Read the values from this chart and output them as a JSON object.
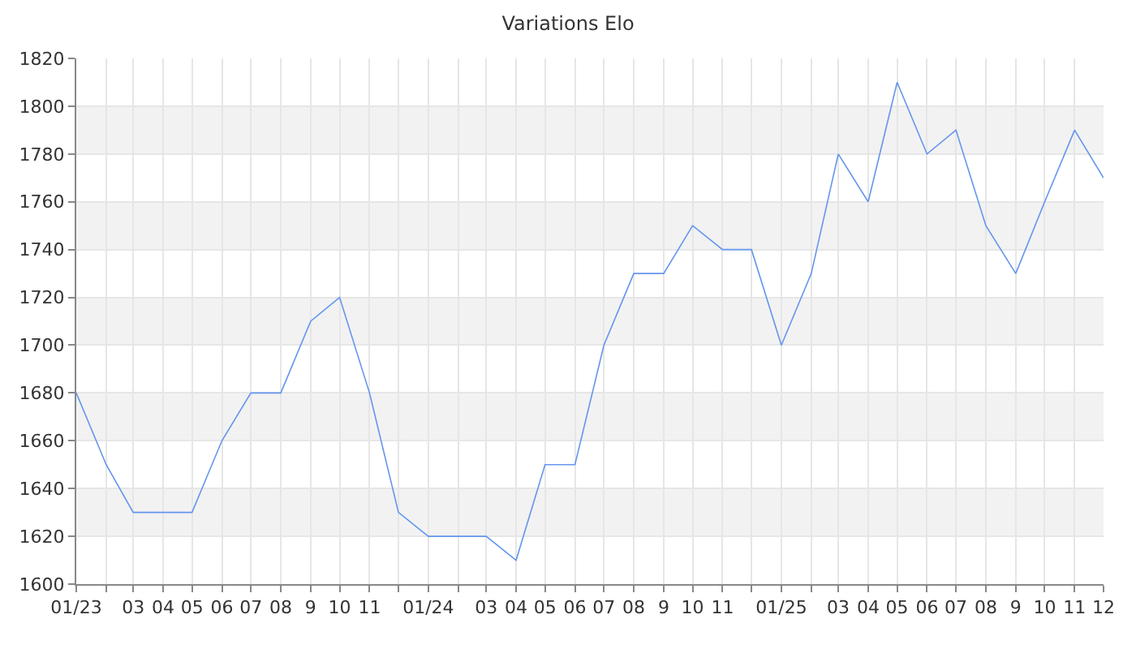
{
  "chart_data": {
    "type": "line",
    "title": "Variations Elo",
    "x": [
      "2023-01",
      "2023-02",
      "2023-03",
      "2023-04",
      "2023-05",
      "2023-06",
      "2023-07",
      "2023-08",
      "2023-09",
      "2023-10",
      "2023-11",
      "2023-12",
      "2024-01",
      "2024-02",
      "2024-03",
      "2024-04",
      "2024-05",
      "2024-06",
      "2024-07",
      "2024-08",
      "2024-09",
      "2024-10",
      "2024-11",
      "2024-12",
      "2025-01",
      "2025-02",
      "2025-03",
      "2025-04",
      "2025-05",
      "2025-06",
      "2025-07",
      "2025-08",
      "2025-09",
      "2025-10",
      "2025-11",
      "2025-12"
    ],
    "series": [
      {
        "color": "#6495ed",
        "values": [
          1680,
          1650,
          1630,
          1630,
          1630,
          1660,
          1680,
          1680,
          1710,
          1720,
          1680,
          1630,
          1620,
          1620,
          1620,
          1610,
          1650,
          1650,
          1700,
          1730,
          1730,
          1750,
          1740,
          1740,
          1700,
          1730,
          1780,
          1760,
          1810,
          1780,
          1790,
          1750,
          1730,
          1760,
          1790,
          1770
        ]
      }
    ],
    "xlim": [
      "2023-01",
      "2025-12"
    ],
    "xticks": [
      {
        "value": "2023-01",
        "label": "01/23"
      },
      {
        "value": "2023-02",
        "label": null
      },
      {
        "value": "2023-03",
        "label": "03"
      },
      {
        "value": "2023-04",
        "label": "04"
      },
      {
        "value": "2023-05",
        "label": "05"
      },
      {
        "value": "2023-06",
        "label": "06"
      },
      {
        "value": "2023-07",
        "label": "07"
      },
      {
        "value": "2023-08",
        "label": "08"
      },
      {
        "value": "2023-09",
        "label": "9"
      },
      {
        "value": "2023-10",
        "label": "10"
      },
      {
        "value": "2023-11",
        "label": "11"
      },
      {
        "value": "2023-12",
        "label": null
      },
      {
        "value": "2024-01",
        "label": "01/24"
      },
      {
        "value": "2024-02",
        "label": null
      },
      {
        "value": "2024-03",
        "label": "03"
      },
      {
        "value": "2024-04",
        "label": "04"
      },
      {
        "value": "2024-05",
        "label": "05"
      },
      {
        "value": "2024-06",
        "label": "06"
      },
      {
        "value": "2024-07",
        "label": "07"
      },
      {
        "value": "2024-08",
        "label": "08"
      },
      {
        "value": "2024-09",
        "label": "9"
      },
      {
        "value": "2024-10",
        "label": "10"
      },
      {
        "value": "2024-11",
        "label": "11"
      },
      {
        "value": "2024-12",
        "label": null
      },
      {
        "value": "2025-01",
        "label": "01/25"
      },
      {
        "value": "2025-02",
        "label": null
      },
      {
        "value": "2025-03",
        "label": "03"
      },
      {
        "value": "2025-04",
        "label": "04"
      },
      {
        "value": "2025-05",
        "label": "05"
      },
      {
        "value": "2025-06",
        "label": "06"
      },
      {
        "value": "2025-07",
        "label": "07"
      },
      {
        "value": "2025-08",
        "label": "08"
      },
      {
        "value": "2025-09",
        "label": "9"
      },
      {
        "value": "2025-10",
        "label": "10"
      },
      {
        "value": "2025-11",
        "label": "11"
      },
      {
        "value": "2025-12",
        "label": "12"
      }
    ],
    "ylim": [
      1600,
      1820
    ],
    "yticks": [
      1600,
      1620,
      1640,
      1660,
      1680,
      1700,
      1720,
      1740,
      1760,
      1780,
      1800,
      1820
    ],
    "bands": [
      {
        "axis": "y",
        "from": 1620,
        "to": 1640,
        "color": "#f2f2f2"
      },
      {
        "axis": "y",
        "from": 1660,
        "to": 1680,
        "color": "#f2f2f2"
      },
      {
        "axis": "y",
        "from": 1700,
        "to": 1720,
        "color": "#f2f2f2"
      },
      {
        "axis": "y",
        "from": 1740,
        "to": 1760,
        "color": "#f2f2f2"
      },
      {
        "axis": "y",
        "from": 1780,
        "to": 1800,
        "color": "#f2f2f2"
      }
    ],
    "grid": true,
    "marker": "none",
    "line_style": "solid"
  }
}
